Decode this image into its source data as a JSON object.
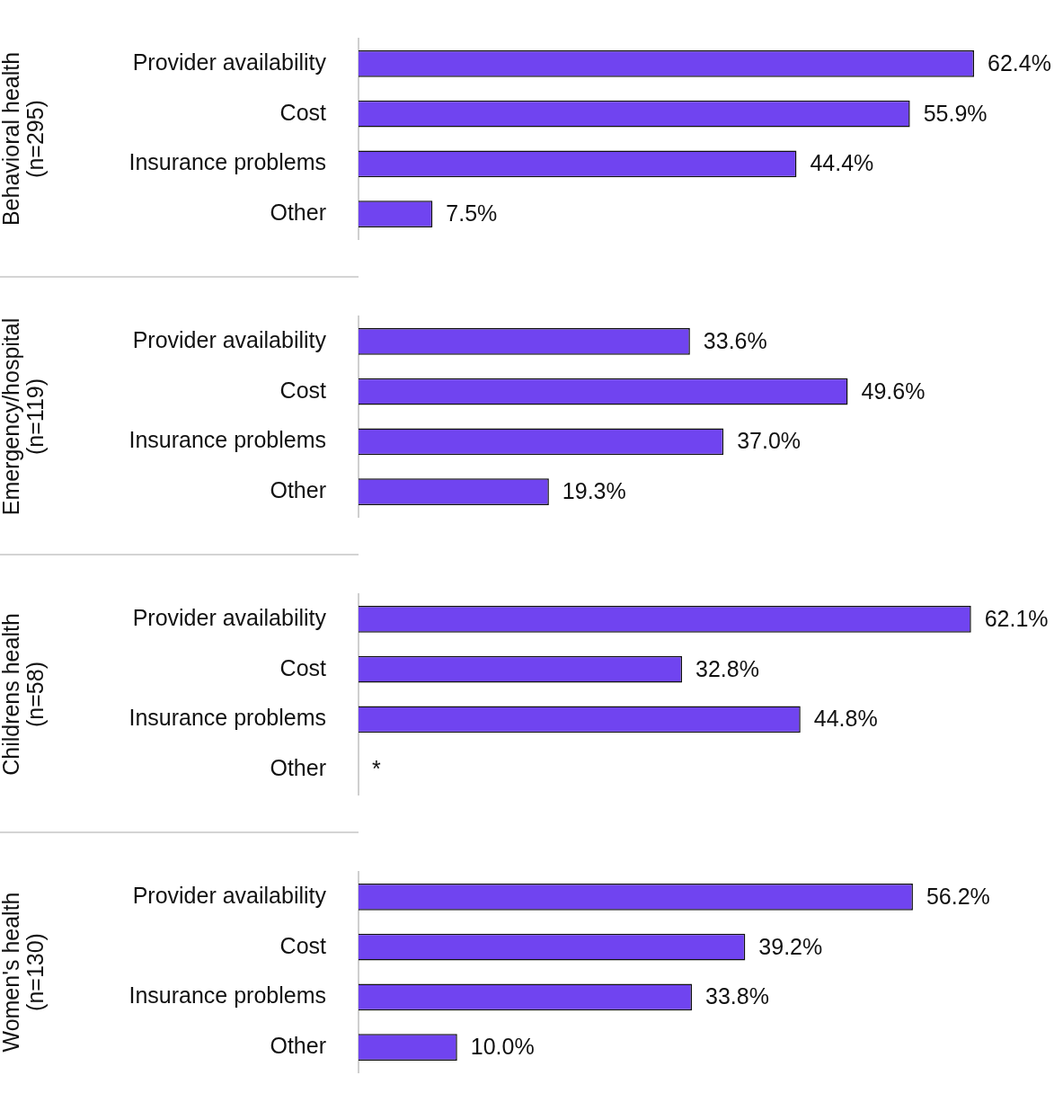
{
  "chart_data": [
    {
      "type": "bar",
      "orientation": "horizontal",
      "ylabel": "Behavioral health\n(n=295)",
      "categories": [
        "Provider availability",
        "Cost",
        "Insurance problems",
        "Other"
      ],
      "values": [
        62.4,
        55.9,
        44.4,
        7.5
      ],
      "value_labels": [
        "62.4%",
        "55.9%",
        "44.4%",
        "7.5%"
      ],
      "color": "#7044f0"
    },
    {
      "type": "bar",
      "orientation": "horizontal",
      "ylabel": "Emergency/hospital\n(n=119)",
      "categories": [
        "Provider availability",
        "Cost",
        "Insurance problems",
        "Other"
      ],
      "values": [
        33.6,
        49.6,
        37.0,
        19.3
      ],
      "value_labels": [
        "33.6%",
        "49.6%",
        "37.0%",
        "19.3%"
      ],
      "color": "#7044f0"
    },
    {
      "type": "bar",
      "orientation": "horizontal",
      "ylabel": "Childrens health\n(n=58)",
      "categories": [
        "Provider availability",
        "Cost",
        "Insurance problems",
        "Other"
      ],
      "values": [
        62.1,
        32.8,
        44.8,
        null
      ],
      "value_labels": [
        "62.1%",
        "32.8%",
        "44.8%",
        "*"
      ],
      "color": "#7044f0"
    },
    {
      "type": "bar",
      "orientation": "horizontal",
      "ylabel": "Women's health\n(n=130)",
      "categories": [
        "Provider availability",
        "Cost",
        "Insurance problems",
        "Other"
      ],
      "values": [
        56.2,
        39.2,
        33.8,
        10.0
      ],
      "value_labels": [
        "56.2%",
        "39.2%",
        "33.8%",
        "10.0%"
      ],
      "color": "#7044f0"
    }
  ]
}
